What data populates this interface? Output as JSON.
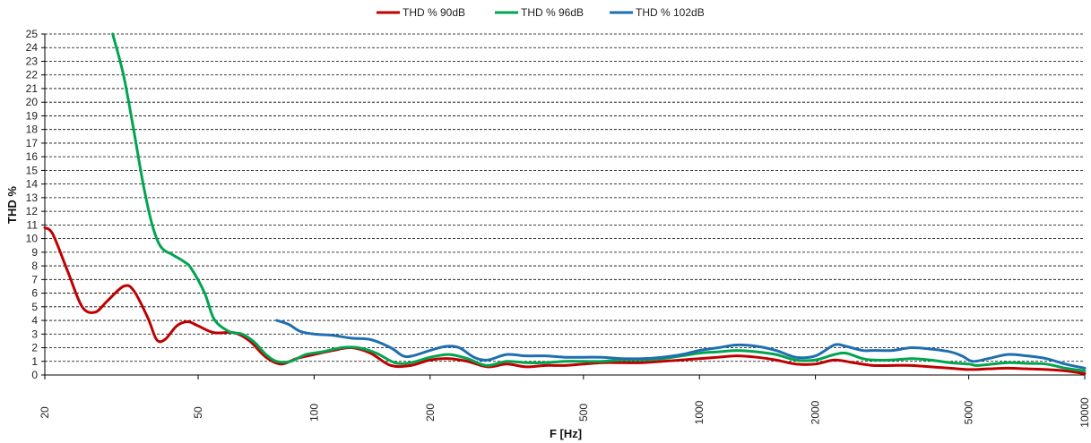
{
  "chart_data": {
    "type": "line",
    "title": "",
    "xlabel": "F [Hz]",
    "ylabel": "THD %",
    "x_scale": "log",
    "xlim": [
      20,
      10000
    ],
    "ylim": [
      0,
      25
    ],
    "x_ticks": [
      20,
      50,
      100,
      200,
      500,
      1000,
      2000,
      5000,
      10000
    ],
    "x_tick_labels": [
      "20",
      "50",
      "100",
      "200",
      "500",
      "1000",
      "2000",
      "5000",
      "10000"
    ],
    "y_ticks": [
      0,
      1,
      2,
      3,
      4,
      5,
      6,
      7,
      8,
      9,
      10,
      11,
      12,
      13,
      14,
      15,
      16,
      17,
      18,
      19,
      20,
      21,
      22,
      23,
      24,
      25
    ],
    "y_tick_labels": [
      "0",
      "1",
      "2",
      "3",
      "4",
      "5",
      "6",
      "7",
      "8",
      "9",
      "10",
      "11",
      "12",
      "13",
      "14",
      "15",
      "16",
      "17",
      "18",
      "19",
      "20",
      "21",
      "22",
      "23",
      "24",
      "25"
    ],
    "grid": "horizontal dashed",
    "legend_position": "top-center",
    "series": [
      {
        "name": "THD % 90dB",
        "color": "#C00000",
        "points": [
          [
            20,
            10.8
          ],
          [
            21,
            10.3
          ],
          [
            23,
            7.5
          ],
          [
            25,
            5.0
          ],
          [
            27,
            4.6
          ],
          [
            29,
            5.4
          ],
          [
            32,
            6.5
          ],
          [
            34,
            6.2
          ],
          [
            37,
            4.2
          ],
          [
            39,
            2.6
          ],
          [
            41,
            2.6
          ],
          [
            44,
            3.6
          ],
          [
            47,
            3.9
          ],
          [
            50,
            3.6
          ],
          [
            55,
            3.1
          ],
          [
            62,
            3.1
          ],
          [
            68,
            2.5
          ],
          [
            75,
            1.3
          ],
          [
            82,
            0.8
          ],
          [
            90,
            1.2
          ],
          [
            100,
            1.5
          ],
          [
            112,
            1.8
          ],
          [
            125,
            2.0
          ],
          [
            140,
            1.6
          ],
          [
            158,
            0.7
          ],
          [
            178,
            0.7
          ],
          [
            200,
            1.1
          ],
          [
            224,
            1.2
          ],
          [
            250,
            1.0
          ],
          [
            282,
            0.6
          ],
          [
            316,
            0.8
          ],
          [
            355,
            0.6
          ],
          [
            398,
            0.7
          ],
          [
            447,
            0.7
          ],
          [
            500,
            0.8
          ],
          [
            560,
            0.9
          ],
          [
            630,
            0.9
          ],
          [
            710,
            0.9
          ],
          [
            800,
            1.0
          ],
          [
            900,
            1.1
          ],
          [
            1000,
            1.2
          ],
          [
            1120,
            1.3
          ],
          [
            1250,
            1.4
          ],
          [
            1410,
            1.3
          ],
          [
            1580,
            1.1
          ],
          [
            1780,
            0.8
          ],
          [
            2000,
            0.8
          ],
          [
            2240,
            1.1
          ],
          [
            2510,
            0.9
          ],
          [
            2820,
            0.7
          ],
          [
            3160,
            0.7
          ],
          [
            3550,
            0.7
          ],
          [
            3980,
            0.6
          ],
          [
            4470,
            0.5
          ],
          [
            5010,
            0.4
          ],
          [
            5620,
            0.45
          ],
          [
            6310,
            0.5
          ],
          [
            7080,
            0.45
          ],
          [
            7940,
            0.4
          ],
          [
            8910,
            0.3
          ],
          [
            10000,
            0.1
          ]
        ]
      },
      {
        "name": "THD % 96dB",
        "color": "#00A550",
        "points": [
          [
            30,
            25.0
          ],
          [
            32,
            22.0
          ],
          [
            34,
            18.0
          ],
          [
            36,
            14.0
          ],
          [
            38,
            11.0
          ],
          [
            40,
            9.4
          ],
          [
            43,
            8.8
          ],
          [
            46,
            8.3
          ],
          [
            48,
            7.8
          ],
          [
            52,
            6.0
          ],
          [
            55,
            4.1
          ],
          [
            60,
            3.2
          ],
          [
            65,
            3.0
          ],
          [
            70,
            2.4
          ],
          [
            75,
            1.5
          ],
          [
            80,
            1.0
          ],
          [
            87,
            1.0
          ],
          [
            95,
            1.5
          ],
          [
            105,
            1.7
          ],
          [
            118,
            2.0
          ],
          [
            130,
            2.0
          ],
          [
            145,
            1.6
          ],
          [
            162,
            0.9
          ],
          [
            178,
            0.9
          ],
          [
            200,
            1.3
          ],
          [
            224,
            1.5
          ],
          [
            250,
            1.2
          ],
          [
            280,
            0.7
          ],
          [
            316,
            1.0
          ],
          [
            355,
            0.9
          ],
          [
            398,
            0.9
          ],
          [
            447,
            1.0
          ],
          [
            500,
            1.0
          ],
          [
            560,
            1.0
          ],
          [
            630,
            1.1
          ],
          [
            710,
            1.1
          ],
          [
            800,
            1.2
          ],
          [
            900,
            1.4
          ],
          [
            1000,
            1.6
          ],
          [
            1120,
            1.7
          ],
          [
            1250,
            1.8
          ],
          [
            1410,
            1.7
          ],
          [
            1580,
            1.5
          ],
          [
            1780,
            1.1
          ],
          [
            2000,
            1.1
          ],
          [
            2240,
            1.5
          ],
          [
            2400,
            1.6
          ],
          [
            2650,
            1.2
          ],
          [
            2820,
            1.1
          ],
          [
            3160,
            1.1
          ],
          [
            3550,
            1.2
          ],
          [
            3980,
            1.1
          ],
          [
            4470,
            0.9
          ],
          [
            5010,
            0.8
          ],
          [
            5300,
            0.7
          ],
          [
            6310,
            0.9
          ],
          [
            7080,
            0.85
          ],
          [
            7940,
            0.8
          ],
          [
            8910,
            0.5
          ],
          [
            10000,
            0.3
          ]
        ]
      },
      {
        "name": "THD % 102dB",
        "color": "#1F6FB0",
        "points": [
          [
            80,
            4.0
          ],
          [
            86,
            3.7
          ],
          [
            92,
            3.2
          ],
          [
            100,
            3.0
          ],
          [
            112,
            2.9
          ],
          [
            125,
            2.7
          ],
          [
            140,
            2.6
          ],
          [
            158,
            2.0
          ],
          [
            170,
            1.4
          ],
          [
            180,
            1.4
          ],
          [
            200,
            1.8
          ],
          [
            220,
            2.1
          ],
          [
            238,
            2.0
          ],
          [
            260,
            1.3
          ],
          [
            282,
            1.1
          ],
          [
            316,
            1.5
          ],
          [
            355,
            1.4
          ],
          [
            398,
            1.4
          ],
          [
            447,
            1.3
          ],
          [
            500,
            1.3
          ],
          [
            560,
            1.3
          ],
          [
            630,
            1.2
          ],
          [
            710,
            1.2
          ],
          [
            800,
            1.3
          ],
          [
            900,
            1.5
          ],
          [
            1000,
            1.8
          ],
          [
            1120,
            2.0
          ],
          [
            1250,
            2.2
          ],
          [
            1410,
            2.1
          ],
          [
            1580,
            1.8
          ],
          [
            1780,
            1.3
          ],
          [
            2000,
            1.4
          ],
          [
            2240,
            2.2
          ],
          [
            2400,
            2.1
          ],
          [
            2650,
            1.8
          ],
          [
            2820,
            1.8
          ],
          [
            3160,
            1.8
          ],
          [
            3550,
            2.0
          ],
          [
            3980,
            1.9
          ],
          [
            4470,
            1.7
          ],
          [
            4800,
            1.4
          ],
          [
            5120,
            1.0
          ],
          [
            5620,
            1.2
          ],
          [
            6310,
            1.5
          ],
          [
            7080,
            1.4
          ],
          [
            7940,
            1.2
          ],
          [
            8910,
            0.8
          ],
          [
            10000,
            0.5
          ]
        ]
      }
    ]
  }
}
